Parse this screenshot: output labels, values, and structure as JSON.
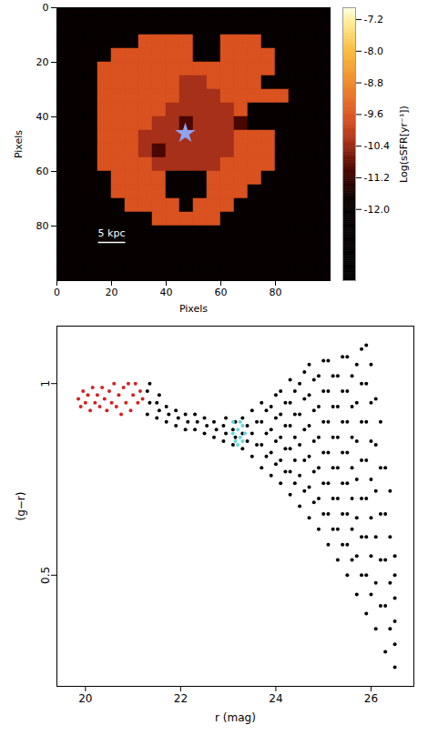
{
  "chart_data": [
    {
      "type": "heatmap",
      "xlabel": "Pixels",
      "ylabel": "Pixels",
      "xlim": [
        0,
        100
      ],
      "ylim": [
        100,
        0
      ],
      "xticks": [
        0,
        20,
        40,
        60,
        80
      ],
      "yticks": [
        0,
        20,
        40,
        60,
        80
      ],
      "x": [
        2.5,
        7.5,
        12.5,
        17.5,
        22.5,
        27.5,
        32.5,
        37.5,
        42.5,
        47.5,
        52.5,
        57.5,
        62.5,
        67.5,
        72.5,
        77.5,
        82.5,
        87.5,
        92.5,
        97.5
      ],
      "y": [
        2.5,
        7.5,
        12.5,
        17.5,
        22.5,
        27.5,
        32.5,
        37.5,
        42.5,
        47.5,
        52.5,
        57.5,
        62.5,
        67.5,
        72.5,
        77.5,
        82.5,
        87.5,
        92.5,
        97.5
      ],
      "cells": [
        [
          -12.3,
          -12.3,
          -12.3,
          -12.3,
          -12.3,
          -12.3,
          -12.3,
          -12.3,
          -12.3,
          -12.3,
          -12.3,
          -12.3,
          -12.3,
          -12.3,
          -12.3,
          -12.3,
          -12.3,
          -12.3,
          -12.3,
          -12.3
        ],
        [
          -12.3,
          -12.3,
          -12.3,
          -12.3,
          -12.3,
          -12.3,
          -12.3,
          -12.3,
          -12.3,
          -12.3,
          -12.3,
          -12.3,
          -12.3,
          -12.3,
          -12.3,
          -12.3,
          -12.3,
          -12.3,
          -12.3,
          -12.3
        ],
        [
          -12.3,
          -12.3,
          -12.3,
          -12.3,
          -12.3,
          -12.3,
          -9.7,
          -9.7,
          -9.7,
          -9.7,
          -12.3,
          -12.3,
          -9.7,
          -9.7,
          -9.7,
          -12.3,
          -12.3,
          -12.3,
          -12.3,
          -12.3
        ],
        [
          -12.3,
          -12.3,
          -12.3,
          -12.3,
          -9.7,
          -9.7,
          -9.7,
          -9.7,
          -9.7,
          -9.7,
          -12.3,
          -12.3,
          -9.7,
          -9.7,
          -9.7,
          -9.7,
          -12.3,
          -12.3,
          -12.3,
          -12.3
        ],
        [
          -12.3,
          -12.3,
          -12.3,
          -9.7,
          -9.7,
          -9.7,
          -9.7,
          -9.7,
          -9.7,
          -9.7,
          -9.7,
          -9.7,
          -9.7,
          -9.7,
          -9.7,
          -9.7,
          -12.3,
          -12.3,
          -12.3,
          -12.3
        ],
        [
          -12.3,
          -12.3,
          -12.3,
          -9.7,
          -9.7,
          -9.7,
          -9.7,
          -9.7,
          -9.7,
          -10.3,
          -10.3,
          -9.7,
          -9.7,
          -9.7,
          -9.7,
          -12.3,
          -12.3,
          -12.3,
          -12.3,
          -12.3
        ],
        [
          -12.3,
          -12.3,
          -12.3,
          -9.7,
          -9.7,
          -9.7,
          -9.7,
          -9.7,
          -9.7,
          -10.3,
          -10.3,
          -10.3,
          -9.7,
          -9.7,
          -9.7,
          -9.7,
          -9.7,
          -12.3,
          -12.3,
          -12.3
        ],
        [
          -12.3,
          -12.3,
          -12.3,
          -9.7,
          -9.7,
          -9.7,
          -9.7,
          -9.7,
          -10.3,
          -10.3,
          -10.3,
          -10.3,
          -10.3,
          -9.7,
          -12.3,
          -12.3,
          -12.3,
          -12.3,
          -12.3,
          -12.3
        ],
        [
          -12.3,
          -12.3,
          -12.3,
          -9.7,
          -9.7,
          -9.7,
          -9.7,
          -10.3,
          -10.3,
          -11.0,
          -10.3,
          -10.3,
          -10.3,
          -11.0,
          -12.3,
          -12.3,
          -12.3,
          -12.3,
          -12.3,
          -12.3
        ],
        [
          -12.3,
          -12.3,
          -12.3,
          -9.7,
          -9.7,
          -9.7,
          -10.3,
          -10.3,
          -10.3,
          -10.3,
          -10.3,
          -10.3,
          -10.3,
          -9.7,
          -9.7,
          -9.7,
          -12.3,
          -12.3,
          -12.3,
          -12.3
        ],
        [
          -12.3,
          -12.3,
          -12.3,
          -9.7,
          -9.7,
          -9.7,
          -10.3,
          -11.0,
          -10.3,
          -10.3,
          -10.3,
          -10.3,
          -10.3,
          -9.7,
          -9.7,
          -9.7,
          -12.3,
          -12.3,
          -12.3,
          -12.3
        ],
        [
          -12.3,
          -12.3,
          -12.3,
          -9.7,
          -9.7,
          -9.7,
          -9.7,
          -10.3,
          -10.3,
          -10.3,
          -10.3,
          -10.3,
          -9.7,
          -9.7,
          -9.7,
          -9.7,
          -12.3,
          -12.3,
          -12.3,
          -12.3
        ],
        [
          -12.3,
          -12.3,
          -12.3,
          -12.3,
          -9.7,
          -9.7,
          -9.7,
          -9.7,
          -12.3,
          -12.3,
          -12.3,
          -9.7,
          -9.7,
          -9.7,
          -9.7,
          -12.3,
          -12.3,
          -12.3,
          -12.3,
          -12.3
        ],
        [
          -12.3,
          -12.3,
          -12.3,
          -12.3,
          -9.7,
          -9.7,
          -9.7,
          -9.7,
          -12.3,
          -12.3,
          -12.3,
          -9.7,
          -9.7,
          -9.7,
          -12.3,
          -12.3,
          -12.3,
          -12.3,
          -12.3,
          -12.3
        ],
        [
          -12.3,
          -12.3,
          -12.3,
          -12.3,
          -12.3,
          -9.7,
          -9.7,
          -9.7,
          -9.7,
          -12.3,
          -9.7,
          -9.7,
          -9.7,
          -12.3,
          -12.3,
          -12.3,
          -12.3,
          -12.3,
          -12.3,
          -12.3
        ],
        [
          -12.3,
          -12.3,
          -12.3,
          -12.3,
          -12.3,
          -12.3,
          -12.3,
          -9.7,
          -9.7,
          -9.7,
          -9.7,
          -9.7,
          -12.3,
          -12.3,
          -12.3,
          -12.3,
          -12.3,
          -12.3,
          -12.3,
          -12.3
        ],
        [
          -12.3,
          -12.3,
          -12.3,
          -12.3,
          -12.3,
          -12.3,
          -12.3,
          -12.3,
          -12.3,
          -12.3,
          -12.3,
          -12.3,
          -12.3,
          -12.3,
          -12.3,
          -12.3,
          -12.3,
          -12.3,
          -12.3,
          -12.3
        ],
        [
          -12.3,
          -12.3,
          -12.3,
          -12.3,
          -12.3,
          -12.3,
          -12.3,
          -12.3,
          -12.3,
          -12.3,
          -12.3,
          -12.3,
          -12.3,
          -12.3,
          -12.3,
          -12.3,
          -12.3,
          -12.3,
          -12.3,
          -12.3
        ],
        [
          -12.3,
          -12.3,
          -12.3,
          -12.3,
          -12.3,
          -12.3,
          -12.3,
          -12.3,
          -12.3,
          -12.3,
          -12.3,
          -12.3,
          -12.3,
          -12.3,
          -12.3,
          -12.3,
          -12.3,
          -12.3,
          -12.3,
          -12.3
        ],
        [
          -12.3,
          -12.3,
          -12.3,
          -12.3,
          -12.3,
          -12.3,
          -12.3,
          -12.3,
          -12.3,
          -12.3,
          -12.3,
          -12.3,
          -12.3,
          -12.3,
          -12.3,
          -12.3,
          -12.3,
          -12.3,
          -12.3,
          -12.3
        ]
      ],
      "colorbar": {
        "label": "Log(sSFR[yr⁻¹])",
        "range": [
          -13.8,
          -6.9
        ],
        "ticks": [
          -7.2,
          {
            "value": -8,
            "label": "-8.0"
          },
          -8.8,
          -9.6,
          -10.4,
          -11.2,
          {
            "value": -12,
            "label": "-12.0"
          }
        ]
      },
      "center": {
        "x": 47,
        "y": 46,
        "marker": "star",
        "color": "#8fa3f2"
      },
      "scale_bar": {
        "label": "5 kpc",
        "x": [
          15,
          25
        ],
        "y": 86
      }
    },
    {
      "type": "scatter",
      "xlabel": "r (mag)",
      "ylabel": "(g−r)",
      "xlim": [
        19.4,
        26.9
      ],
      "ylim": [
        0.21,
        1.15
      ],
      "xticks": [
        20,
        22,
        24,
        26
      ],
      "yticks": [
        0.5,
        1
      ],
      "series": [
        {
          "color": "#000000",
          "x": [
            21.3,
            21.35,
            21.3,
            21.35,
            21.5,
            21.55,
            21.5,
            21.55,
            21.7,
            21.75,
            21.7,
            21.9,
            21.95,
            21.9,
            22.1,
            22.15,
            22.1,
            22.3,
            22.35,
            22.3,
            22.5,
            22.55,
            22.5,
            22.7,
            22.75,
            22.7,
            22.9,
            22.95,
            22.9,
            22.95,
            23.1,
            23.15,
            23.1,
            23.15,
            23.3,
            23.4,
            23.3,
            23.4,
            23.3,
            23.5,
            23.6,
            23.5,
            23.6,
            23.5,
            23.7,
            23.8,
            23.7,
            23.8,
            23.7,
            23.8,
            23.7,
            23.9,
            24.0,
            23.9,
            24.0,
            23.9,
            24.0,
            23.9,
            24.0,
            24.1,
            24.2,
            24.1,
            24.2,
            24.1,
            24.2,
            24.1,
            24.2,
            24.1,
            24.3,
            24.4,
            24.3,
            24.4,
            24.3,
            24.4,
            24.3,
            24.4,
            24.3,
            24.4,
            24.3,
            24.5,
            24.6,
            24.5,
            24.6,
            24.5,
            24.6,
            24.5,
            24.6,
            24.5,
            24.6,
            24.7,
            24.8,
            24.7,
            24.8,
            24.7,
            24.8,
            24.7,
            24.8,
            24.7,
            24.8,
            24.7,
            24.9,
            25.0,
            24.9,
            25.0,
            24.9,
            25.0,
            24.9,
            25.0,
            24.9,
            25.0,
            24.9,
            25.0,
            25.1,
            25.2,
            25.1,
            25.2,
            25.1,
            25.2,
            25.1,
            25.2,
            25.1,
            25.2,
            25.1,
            25.2,
            25.1,
            25.3,
            25.4,
            25.3,
            25.4,
            25.3,
            25.4,
            25.3,
            25.4,
            25.3,
            25.4,
            25.3,
            25.4,
            25.3,
            25.4,
            25.5,
            25.6,
            25.5,
            25.6,
            25.5,
            25.6,
            25.5,
            25.6,
            25.5,
            25.6,
            25.5,
            25.6,
            25.5,
            25.6,
            25.5,
            25.7,
            25.8,
            25.7,
            25.8,
            25.7,
            25.8,
            25.7,
            25.8,
            25.7,
            25.8,
            25.7,
            25.8,
            25.7,
            25.8,
            25.9,
            26.0,
            25.9,
            26.0,
            25.9,
            26.0,
            25.9,
            26.0,
            25.9,
            26.0,
            25.9,
            26.0,
            25.9,
            26.0,
            25.9,
            26.1,
            26.2,
            26.1,
            26.2,
            26.1,
            26.2,
            26.1,
            26.2,
            26.1,
            26.2,
            26.1,
            26.3,
            26.4,
            26.3,
            26.4,
            26.3,
            26.4,
            26.3,
            26.4,
            26.3,
            26.5,
            26.5,
            26.5,
            26.5,
            26.5,
            26.5
          ],
          "values": [
            0.92,
            0.95,
            0.98,
            1.0,
            0.91,
            0.93,
            0.95,
            0.97,
            0.9,
            0.92,
            0.94,
            0.89,
            0.91,
            0.93,
            0.88,
            0.9,
            0.92,
            0.88,
            0.9,
            0.92,
            0.87,
            0.89,
            0.91,
            0.86,
            0.88,
            0.9,
            0.85,
            0.87,
            0.89,
            0.91,
            0.84,
            0.86,
            0.88,
            0.9,
            0.83,
            0.85,
            0.87,
            0.89,
            0.91,
            0.81,
            0.84,
            0.87,
            0.9,
            0.93,
            0.78,
            0.81,
            0.84,
            0.87,
            0.9,
            0.93,
            0.95,
            0.76,
            0.79,
            0.82,
            0.85,
            0.88,
            0.91,
            0.94,
            0.97,
            0.74,
            0.77,
            0.8,
            0.83,
            0.86,
            0.89,
            0.92,
            0.95,
            0.98,
            0.71,
            0.74,
            0.77,
            0.8,
            0.83,
            0.86,
            0.89,
            0.92,
            0.95,
            0.98,
            1.01,
            0.68,
            0.72,
            0.76,
            0.8,
            0.84,
            0.88,
            0.92,
            0.96,
            1.0,
            1.03,
            0.65,
            0.69,
            0.73,
            0.77,
            0.81,
            0.85,
            0.89,
            0.93,
            0.97,
            1.01,
            1.05,
            0.62,
            0.66,
            0.7,
            0.74,
            0.78,
            0.82,
            0.86,
            0.9,
            0.94,
            0.98,
            1.02,
            1.06,
            0.58,
            0.62,
            0.66,
            0.7,
            0.74,
            0.78,
            0.82,
            0.86,
            0.9,
            0.94,
            0.98,
            1.02,
            1.06,
            0.54,
            0.58,
            0.62,
            0.66,
            0.7,
            0.74,
            0.78,
            0.82,
            0.86,
            0.9,
            0.94,
            0.98,
            1.02,
            1.07,
            0.5,
            0.54,
            0.58,
            0.62,
            0.66,
            0.7,
            0.74,
            0.78,
            0.82,
            0.86,
            0.9,
            0.94,
            0.98,
            1.02,
            1.07,
            0.45,
            0.5,
            0.55,
            0.6,
            0.65,
            0.7,
            0.75,
            0.8,
            0.85,
            0.9,
            0.95,
            1.0,
            1.05,
            1.09,
            0.4,
            0.45,
            0.5,
            0.55,
            0.6,
            0.65,
            0.7,
            0.75,
            0.8,
            0.85,
            0.9,
            0.95,
            1.0,
            1.05,
            1.1,
            0.36,
            0.42,
            0.48,
            0.54,
            0.6,
            0.66,
            0.72,
            0.78,
            0.84,
            0.9,
            0.96,
            0.3,
            0.36,
            0.42,
            0.48,
            0.54,
            0.6,
            0.66,
            0.72,
            0.78,
            0.26,
            0.32,
            0.38,
            0.44,
            0.5,
            0.55
          ]
        },
        {
          "color": "#d42020",
          "x": [
            19.85,
            19.9,
            19.95,
            20.0,
            20.05,
            20.1,
            20.15,
            20.2,
            20.25,
            20.3,
            20.35,
            20.4,
            20.45,
            20.5,
            20.55,
            20.6,
            20.65,
            20.7,
            20.75,
            20.8,
            20.85,
            20.9,
            20.95,
            21.0,
            21.05,
            21.1,
            21.15,
            21.2
          ],
          "values": [
            0.96,
            0.94,
            0.98,
            0.95,
            0.97,
            0.93,
            0.99,
            0.95,
            0.97,
            0.94,
            0.99,
            0.96,
            0.93,
            0.98,
            0.95,
            1.0,
            0.94,
            0.97,
            0.92,
            0.99,
            0.95,
            1.0,
            0.93,
            0.97,
            1.0,
            0.95,
            0.98,
            0.96
          ]
        },
        {
          "color": "#5fd8e0",
          "x": [
            23.1,
            23.15,
            23.2,
            23.25,
            23.3,
            23.2,
            23.35,
            23.1,
            23.25,
            23.3
          ],
          "values": [
            0.87,
            0.85,
            0.88,
            0.86,
            0.89,
            0.84,
            0.87,
            0.9,
            0.9,
            0.85
          ]
        }
      ]
    }
  ]
}
